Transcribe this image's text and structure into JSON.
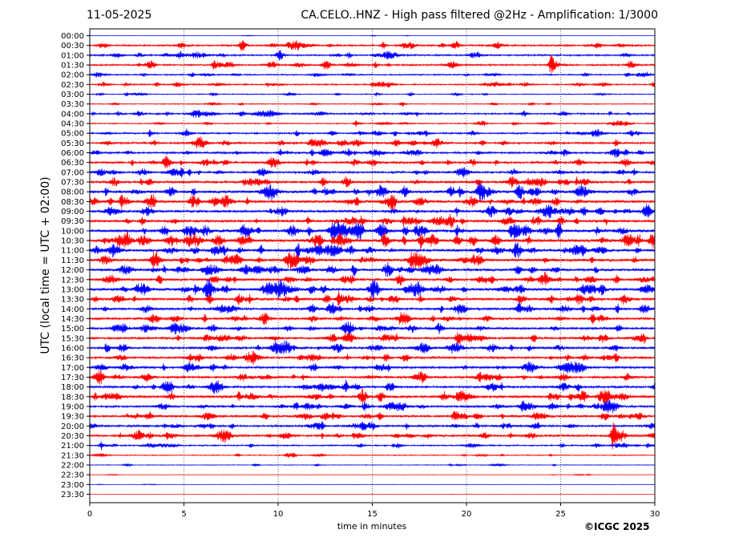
{
  "chart_data": {
    "type": "line",
    "date": "11-05-2025",
    "title": "CA.CELO..HNZ - High pass filtered @2Hz - Amplification: 1/3000",
    "xlabel": "time in minutes",
    "ylabel": "UTC (local time = UTC + 02:00)",
    "xlim": [
      0,
      30
    ],
    "xticks": [
      0,
      5,
      10,
      15,
      20,
      25,
      30
    ],
    "grid": "vertical dotted lines every 5 minutes",
    "series_colors": [
      "#0000ff",
      "#ff0000"
    ],
    "row_labels": [
      "00:00",
      "00:30",
      "01:00",
      "01:30",
      "02:00",
      "02:30",
      "03:00",
      "03:30",
      "04:00",
      "04:30",
      "05:00",
      "05:30",
      "06:00",
      "06:30",
      "07:00",
      "07:30",
      "08:00",
      "08:30",
      "09:00",
      "09:30",
      "10:00",
      "10:30",
      "11:00",
      "11:30",
      "12:00",
      "12:30",
      "13:00",
      "13:30",
      "14:00",
      "14:30",
      "15:00",
      "15:30",
      "16:00",
      "16:30",
      "17:00",
      "17:30",
      "18:00",
      "18:30",
      "19:00",
      "19:30",
      "20:00",
      "20:30",
      "21:00",
      "21:30",
      "22:00",
      "22:30",
      "23:00",
      "23:30"
    ],
    "noise_level": [
      0.2,
      1.3,
      1.2,
      1.2,
      1.0,
      1.0,
      0.7,
      0.7,
      1.2,
      0.8,
      1.2,
      1.4,
      1.4,
      1.6,
      1.4,
      1.7,
      2.0,
      1.9,
      1.8,
      1.8,
      2.2,
      2.2,
      2.0,
      2.0,
      1.8,
      1.8,
      2.0,
      1.8,
      1.7,
      1.6,
      1.6,
      1.6,
      1.6,
      1.6,
      1.6,
      1.6,
      1.6,
      1.8,
      1.5,
      1.6,
      1.5,
      1.5,
      1.0,
      0.7,
      0.5,
      0.3,
      0.25,
      0.1
    ],
    "events": [
      {
        "row": 2,
        "minute": 20.6,
        "amplitude": 3
      },
      {
        "row": 3,
        "minute": 6.6,
        "amplitude": 3
      },
      {
        "row": 3,
        "minute": 24.5,
        "amplitude": 14
      },
      {
        "row": 4,
        "minute": 28.5,
        "amplitude": 4
      },
      {
        "row": 5,
        "minute": 1.9,
        "amplitude": 3
      },
      {
        "row": 5,
        "minute": 15.0,
        "amplitude": 3
      },
      {
        "row": 5,
        "minute": 29.9,
        "amplitude": 3
      },
      {
        "row": 6,
        "minute": 15.2,
        "amplitude": 3
      },
      {
        "row": 8,
        "minute": 1.5,
        "amplitude": 3
      },
      {
        "row": 8,
        "minute": 4.1,
        "amplitude": 3
      },
      {
        "row": 9,
        "minute": 14.1,
        "amplitude": 5
      },
      {
        "row": 9,
        "minute": 22.5,
        "amplitude": 4
      },
      {
        "row": 10,
        "minute": 3.2,
        "amplitude": 5
      },
      {
        "row": 10,
        "minute": 5.2,
        "amplitude": 3
      },
      {
        "row": 12,
        "minute": 20.6,
        "amplitude": 3
      },
      {
        "row": 13,
        "minute": 19.0,
        "amplitude": 4
      },
      {
        "row": 16,
        "minute": 14.1,
        "amplitude": 4
      },
      {
        "row": 19,
        "minute": 19.2,
        "amplitude": 5
      },
      {
        "row": 20,
        "minute": 19.5,
        "amplitude": 7
      },
      {
        "row": 20,
        "minute": 26.9,
        "amplitude": 4
      },
      {
        "row": 21,
        "minute": 0.8,
        "amplitude": 6
      },
      {
        "row": 22,
        "minute": 16.0,
        "amplitude": 3
      },
      {
        "row": 23,
        "minute": 6.2,
        "amplitude": 3
      },
      {
        "row": 23,
        "minute": 20.4,
        "amplitude": 3
      },
      {
        "row": 25,
        "minute": 25.8,
        "amplitude": 4
      },
      {
        "row": 26,
        "minute": 5.6,
        "amplitude": 7
      },
      {
        "row": 26,
        "minute": 6.3,
        "amplitude": 12
      },
      {
        "row": 27,
        "minute": 13.2,
        "amplitude": 12
      },
      {
        "row": 27,
        "minute": 26.6,
        "amplitude": 3
      },
      {
        "row": 28,
        "minute": 19.4,
        "amplitude": 3
      },
      {
        "row": 32,
        "minute": 23.3,
        "amplitude": 4
      },
      {
        "row": 38,
        "minute": 14.6,
        "amplitude": 8
      },
      {
        "row": 39,
        "minute": 19.3,
        "amplitude": 6
      },
      {
        "row": 41,
        "minute": 1.6,
        "amplitude": 4
      },
      {
        "row": 41,
        "minute": 22.3,
        "amplitude": 4
      },
      {
        "row": 41,
        "minute": 27.8,
        "amplitude": 14
      },
      {
        "row": 42,
        "minute": 0.6,
        "amplitude": 6
      },
      {
        "row": 42,
        "minute": 29.6,
        "amplitude": 4
      }
    ]
  },
  "footer": {
    "copyright": "©ICGC 2025"
  }
}
